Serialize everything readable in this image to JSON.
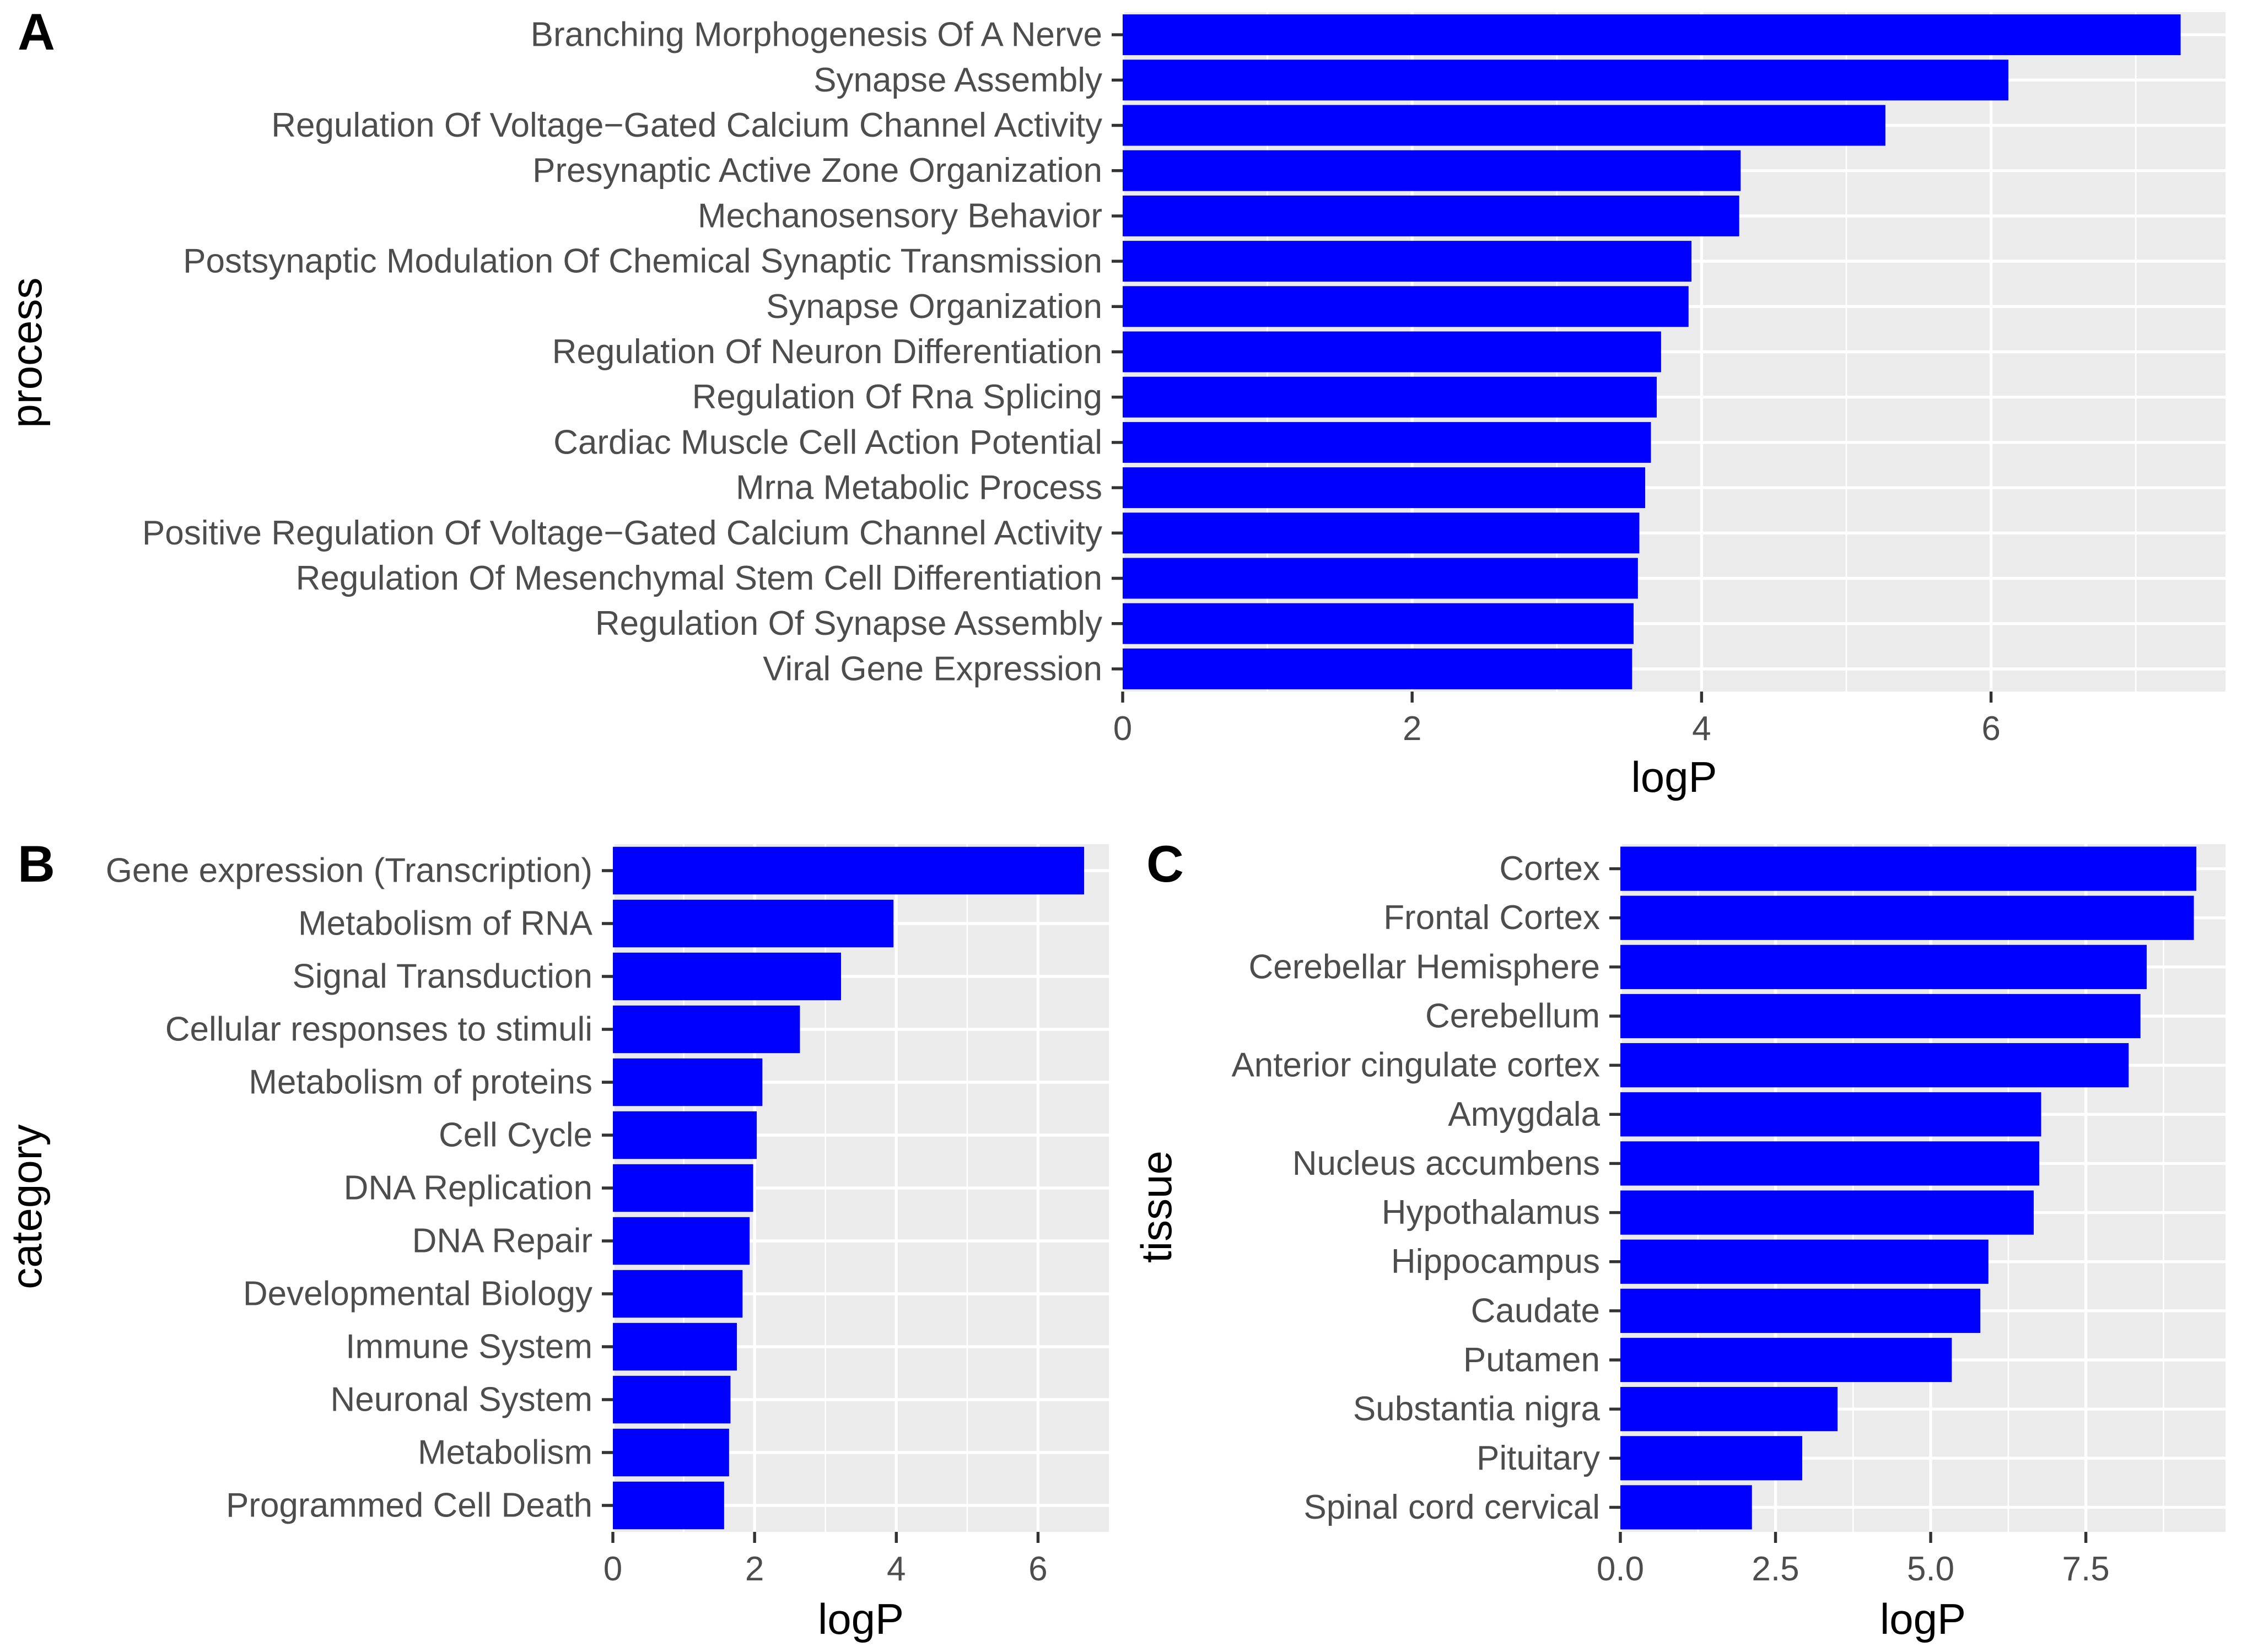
{
  "chart_data": [
    {
      "type": "bar",
      "orientation": "horizontal",
      "panel_label": "A",
      "ylabel": "process",
      "xlabel": "logP",
      "xlim": [
        0,
        7.62
      ],
      "xticks": [
        0,
        2,
        4,
        6
      ],
      "xtick_labels": [
        "0",
        "2",
        "4",
        "6"
      ],
      "bar_color": "#0000ff",
      "categories": [
        "Branching Morphogenesis Of A Nerve",
        "Synapse Assembly",
        "Regulation Of Voltage−Gated Calcium Channel Activity",
        "Presynaptic Active Zone Organization",
        "Mechanosensory Behavior",
        "Postsynaptic Modulation Of Chemical Synaptic Transmission",
        "Synapse Organization",
        "Regulation Of Neuron Differentiation",
        "Regulation Of Rna Splicing",
        "Cardiac Muscle Cell Action Potential",
        "Mrna Metabolic Process",
        "Positive Regulation Of Voltage−Gated Calcium Channel Activity",
        "Regulation Of Mesenchymal Stem Cell Differentiation",
        "Regulation Of Synapse Assembly",
        "Viral Gene Expression"
      ],
      "values": [
        7.31,
        6.12,
        5.27,
        4.27,
        4.26,
        3.93,
        3.91,
        3.72,
        3.69,
        3.65,
        3.61,
        3.57,
        3.56,
        3.53,
        3.52
      ]
    },
    {
      "type": "bar",
      "orientation": "horizontal",
      "panel_label": "B",
      "ylabel": "category",
      "xlabel": "logP",
      "xlim": [
        0,
        7.0
      ],
      "xticks": [
        0,
        2,
        4,
        6
      ],
      "xtick_labels": [
        "0",
        "2",
        "4",
        "6"
      ],
      "bar_color": "#0000ff",
      "categories": [
        "Gene expression (Transcription)",
        "Metabolism of RNA",
        "Signal Transduction",
        "Cellular responses to stimuli",
        "Metabolism of proteins",
        "Cell Cycle",
        "DNA Replication",
        "DNA Repair",
        "Developmental Biology",
        "Immune System",
        "Neuronal System",
        "Metabolism",
        "Programmed Cell Death"
      ],
      "values": [
        6.65,
        3.96,
        3.22,
        2.64,
        2.11,
        2.03,
        1.98,
        1.93,
        1.83,
        1.75,
        1.66,
        1.64,
        1.57
      ]
    },
    {
      "type": "bar",
      "orientation": "horizontal",
      "panel_label": "C",
      "ylabel": "tissue",
      "xlabel": "logP",
      "xlim": [
        0,
        9.75
      ],
      "xticks": [
        0,
        2.5,
        5.0,
        7.5
      ],
      "xtick_labels": [
        "0.0",
        "2.5",
        "5.0",
        "7.5"
      ],
      "bar_color": "#0000ff",
      "categories": [
        "Cortex",
        "Frontal Cortex",
        "Cerebellar Hemisphere",
        "Cerebellum",
        "Anterior cingulate cortex",
        "Amygdala",
        "Nucleus accumbens",
        "Hypothalamus",
        "Hippocampus",
        "Caudate",
        "Putamen",
        "Substantia nigra",
        "Pituitary",
        "Spinal cord cervical"
      ],
      "values": [
        9.28,
        9.24,
        8.48,
        8.38,
        8.19,
        6.78,
        6.75,
        6.66,
        5.93,
        5.8,
        5.34,
        3.5,
        2.93,
        2.12
      ]
    }
  ]
}
